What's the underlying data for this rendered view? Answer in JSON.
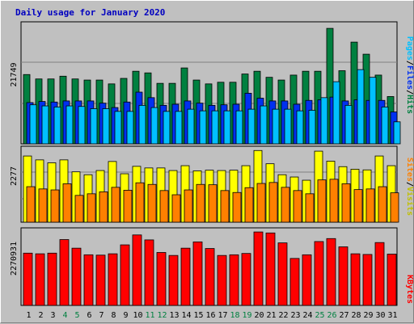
{
  "title": "Daily usage for January 2020",
  "colors": {
    "background": "#c0c0c0",
    "title": "#0000c0",
    "pages": "#00c0ff",
    "files": "#0030f0",
    "hits": "#008040",
    "sites": "#ff8000",
    "visits": "#ffff00",
    "kbytes": "#ff0000",
    "weekend_day": "#008040"
  },
  "chart_data": [
    {
      "type": "bar",
      "panel": "hits-files-pages",
      "max_label": "21749",
      "ylim": [
        0,
        21749
      ],
      "categories": [
        "1",
        "2",
        "3",
        "4",
        "5",
        "6",
        "7",
        "8",
        "9",
        "10",
        "11",
        "12",
        "13",
        "14",
        "15",
        "16",
        "17",
        "18",
        "19",
        "20",
        "21",
        "22",
        "23",
        "24",
        "25",
        "26",
        "27",
        "28",
        "29",
        "30",
        "31"
      ],
      "weekend": [
        "4",
        "5",
        "11",
        "12",
        "18",
        "19",
        "25",
        "26"
      ],
      "series": [
        {
          "name": "Hits",
          "color": "#008040",
          "values": [
            12600,
            11800,
            11800,
            12300,
            11800,
            11600,
            11600,
            10900,
            11900,
            13200,
            12900,
            11000,
            11000,
            13800,
            11600,
            10900,
            11200,
            11200,
            12700,
            13200,
            12100,
            11600,
            12500,
            13200,
            13200,
            21000,
            13300,
            18500,
            16300,
            12500,
            8600
          ]
        },
        {
          "name": "Files",
          "color": "#0030f0",
          "values": [
            7500,
            7700,
            7600,
            7800,
            7800,
            7800,
            7400,
            6600,
            7600,
            9400,
            8400,
            7000,
            7200,
            7800,
            7400,
            7000,
            7100,
            7200,
            9200,
            8300,
            7800,
            7800,
            7200,
            7900,
            8000,
            8500,
            7800,
            8000,
            7900,
            7900,
            5800
          ]
        },
        {
          "name": "Pages",
          "color": "#00c0ff",
          "values": [
            7100,
            6900,
            6700,
            6900,
            6800,
            6400,
            6400,
            5900,
            5900,
            7000,
            6600,
            5900,
            5900,
            6300,
            6000,
            6000,
            6000,
            6000,
            6300,
            6900,
            6300,
            6300,
            6000,
            6100,
            8400,
            11300,
            7000,
            13500,
            12100,
            6700,
            4000
          ]
        }
      ]
    },
    {
      "type": "bar",
      "panel": "visits-sites",
      "max_label": "2277",
      "ylim": [
        0,
        2277
      ],
      "categories": [
        "1",
        "2",
        "3",
        "4",
        "5",
        "6",
        "7",
        "8",
        "9",
        "10",
        "11",
        "12",
        "13",
        "14",
        "15",
        "16",
        "17",
        "18",
        "19",
        "20",
        "21",
        "22",
        "23",
        "24",
        "25",
        "26",
        "27",
        "28",
        "29",
        "30",
        "31"
      ],
      "series": [
        {
          "name": "Visits",
          "color": "#ffff00",
          "values": [
            2050,
            1930,
            1840,
            1930,
            1560,
            1470,
            1600,
            1880,
            1500,
            1730,
            1680,
            1680,
            1600,
            1750,
            1590,
            1610,
            1600,
            1610,
            1750,
            2220,
            1810,
            1470,
            1400,
            1300,
            2200,
            1890,
            1720,
            1640,
            1620,
            2050,
            1750
          ]
        },
        {
          "name": "Sites",
          "color": "#ff8000",
          "values": [
            1100,
            1030,
            1000,
            1190,
            830,
            880,
            940,
            1080,
            990,
            1220,
            1170,
            980,
            850,
            1000,
            1170,
            1160,
            980,
            920,
            1070,
            1200,
            1230,
            1080,
            980,
            880,
            1310,
            1330,
            1190,
            1010,
            1030,
            1100,
            910
          ]
        }
      ]
    },
    {
      "type": "bar",
      "panel": "kbytes",
      "max_label": "2270931",
      "ylim": [
        0,
        2270931
      ],
      "categories": [
        "1",
        "2",
        "3",
        "4",
        "5",
        "6",
        "7",
        "8",
        "9",
        "10",
        "11",
        "12",
        "13",
        "14",
        "15",
        "16",
        "17",
        "18",
        "19",
        "20",
        "21",
        "22",
        "23",
        "24",
        "25",
        "26",
        "27",
        "28",
        "29",
        "30",
        "31"
      ],
      "series": [
        {
          "name": "KBytes",
          "color": "#ff0000",
          "values": [
            1580000,
            1560000,
            1580000,
            1990000,
            1730000,
            1530000,
            1520000,
            1560000,
            1830000,
            2130000,
            1980000,
            1600000,
            1510000,
            1730000,
            1920000,
            1720000,
            1510000,
            1530000,
            1570000,
            2220000,
            2190000,
            1890000,
            1420000,
            1530000,
            1930000,
            2020000,
            1770000,
            1560000,
            1540000,
            1900000,
            1550000
          ]
        }
      ]
    }
  ]
}
